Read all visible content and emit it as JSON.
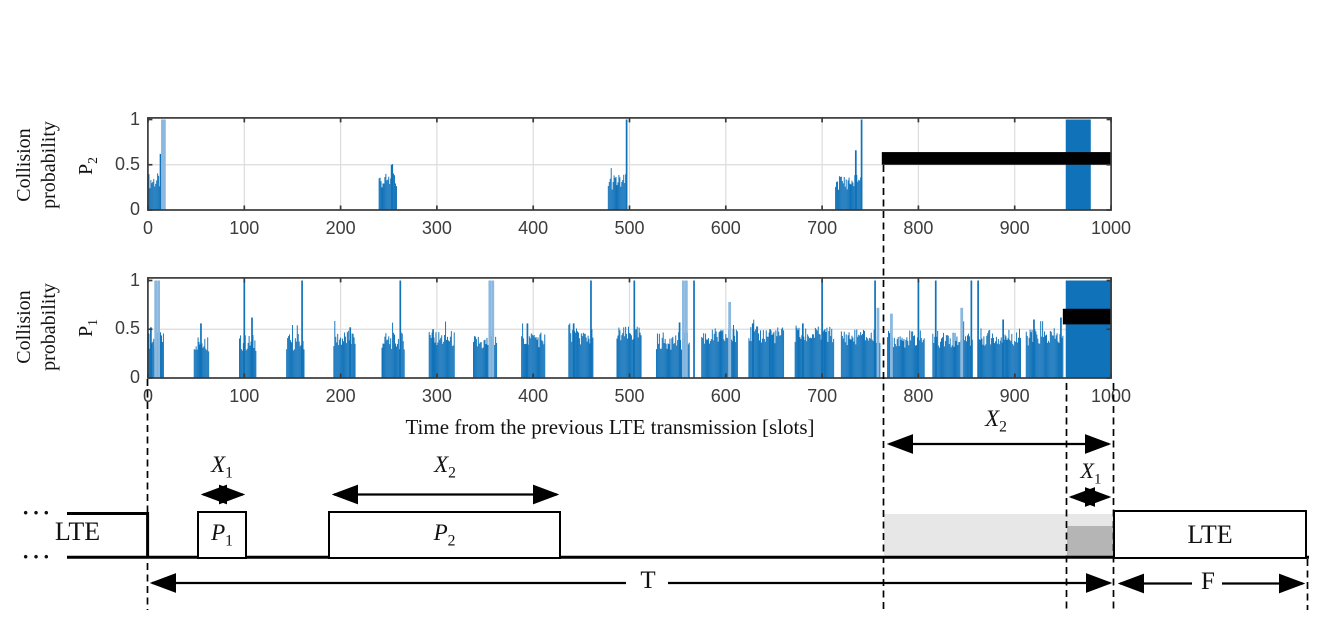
{
  "colors": {
    "bar_dark": "#1072b9",
    "bar_light": "#8ab8df",
    "overlay_bar": "#000000",
    "grid": "#dcdcdc",
    "axis": "#3a3a3a",
    "tick_text": "#3d3d3d",
    "shade_light": "#e7e7e7",
    "shade_dark": "#b5b5b5"
  },
  "chart_data": [
    {
      "type": "bar",
      "name": "collision-probability-p2",
      "ylabel_lines": [
        "Collision",
        "probability"
      ],
      "series_label": {
        "base": "P",
        "sub": "2"
      },
      "xlim": [
        0,
        1000
      ],
      "ylim": [
        0,
        1
      ],
      "grid": true,
      "legend": "none",
      "x_ticks": [
        0,
        100,
        200,
        300,
        400,
        500,
        600,
        700,
        800,
        900,
        1000
      ],
      "x_tick_labels": [
        "0",
        "100",
        "200",
        "300",
        "400",
        "500",
        "600",
        "700",
        "800",
        "900",
        "1000"
      ],
      "y_ticks": [
        0,
        0.5,
        1
      ],
      "y_tick_labels": [
        "0",
        "0.5",
        "1"
      ],
      "clusters": [
        {
          "from": 1,
          "to": 14,
          "base": 0.32,
          "spikes": [
            [
              13,
              0.62,
              "d"
            ],
            [
              15,
              1.0,
              "l"
            ],
            [
              17,
              1.0,
              "l"
            ]
          ]
        },
        {
          "from": 240,
          "to": 258,
          "base": 0.32,
          "spikes": [
            [
              253,
              0.5,
              "d"
            ]
          ]
        },
        {
          "from": 478,
          "to": 496,
          "base": 0.31,
          "spikes": [
            [
              497,
              1.0,
              "d"
            ]
          ]
        },
        {
          "from": 714,
          "to": 741,
          "base": 0.31,
          "spikes": [
            [
              735,
              0.66,
              "d"
            ],
            [
              741,
              1.0,
              "d"
            ]
          ]
        }
      ],
      "solid_blocks": [
        {
          "from": 953,
          "to": 979,
          "height": 1.0
        }
      ],
      "overlay_bar": {
        "x": [
          762,
          1000
        ],
        "y": [
          0.5,
          0.64
        ]
      }
    },
    {
      "type": "bar",
      "name": "collision-probability-p1",
      "ylabel_lines": [
        "Collision",
        "probability"
      ],
      "series_label": {
        "base": "P",
        "sub": "1"
      },
      "xlabel": "Time from the previous LTE transmission [slots]",
      "xlim": [
        0,
        1000
      ],
      "ylim": [
        0,
        1
      ],
      "grid": true,
      "legend": "none",
      "x_ticks": [
        0,
        100,
        200,
        300,
        400,
        500,
        600,
        700,
        800,
        900,
        1000
      ],
      "x_tick_labels": [
        "0",
        "100",
        "200",
        "300",
        "400",
        "500",
        "600",
        "700",
        "800",
        "900",
        "1000"
      ],
      "y_ticks": [
        0,
        0.5,
        1
      ],
      "y_tick_labels": [
        "0",
        "0.5",
        "1"
      ],
      "clusters": [
        {
          "from": 1,
          "to": 16,
          "base": 0.38,
          "spikes": [
            [
              3,
              0.52,
              "d"
            ],
            [
              8,
              1.0,
              "l"
            ],
            [
              11,
              1.0,
              "l"
            ]
          ]
        },
        {
          "from": 48,
          "to": 63,
          "base": 0.36,
          "spikes": [
            [
              55,
              0.56,
              "d"
            ]
          ]
        },
        {
          "from": 95,
          "to": 112,
          "base": 0.36,
          "spikes": [
            [
              100,
              1.0,
              "d"
            ],
            [
              108,
              0.62,
              "d"
            ]
          ]
        },
        {
          "from": 144,
          "to": 162,
          "base": 0.37,
          "spikes": [
            [
              160,
              1.0,
              "d"
            ]
          ]
        },
        {
          "from": 193,
          "to": 215,
          "base": 0.4,
          "spikes": [
            [
              210,
              0.52,
              "d"
            ]
          ]
        },
        {
          "from": 243,
          "to": 266,
          "base": 0.38,
          "spikes": [
            [
              262,
              1.0,
              "d"
            ]
          ]
        },
        {
          "from": 292,
          "to": 318,
          "base": 0.4,
          "spikes": [
            [
              296,
              0.5,
              "d"
            ]
          ]
        },
        {
          "from": 338,
          "to": 362,
          "base": 0.36,
          "spikes": [
            [
              355,
              1.0,
              "l"
            ],
            [
              358,
              1.0,
              "l"
            ]
          ]
        },
        {
          "from": 388,
          "to": 412,
          "base": 0.4,
          "spikes": [
            [
              394,
              0.56,
              "d"
            ]
          ]
        },
        {
          "from": 437,
          "to": 462,
          "base": 0.42,
          "spikes": [
            [
              442,
              0.56,
              "d"
            ],
            [
              460,
              1.0,
              "d"
            ]
          ]
        },
        {
          "from": 487,
          "to": 512,
          "base": 0.44,
          "spikes": [
            [
              505,
              1.0,
              "d"
            ]
          ]
        },
        {
          "from": 528,
          "to": 562,
          "base": 0.38,
          "spikes": [
            [
              552,
              0.57,
              "d"
            ],
            [
              556,
              1.0,
              "l"
            ],
            [
              559,
              1.0,
              "l"
            ]
          ]
        },
        {
          "from": 575,
          "to": 612,
          "base": 0.42,
          "spikes": [
            [
              567,
              1.0,
              "d"
            ],
            [
              604,
              0.78,
              "l"
            ],
            [
              608,
              0.5,
              "d"
            ]
          ]
        },
        {
          "from": 624,
          "to": 660,
          "base": 0.44,
          "spikes": [
            [
              628,
              0.56,
              "d"
            ],
            [
              646,
              0.5,
              "d"
            ]
          ]
        },
        {
          "from": 672,
          "to": 712,
          "base": 0.44,
          "spikes": [
            [
              680,
              0.56,
              "d"
            ],
            [
              700,
              1.0,
              "d"
            ]
          ]
        },
        {
          "from": 720,
          "to": 760,
          "base": 0.42,
          "spikes": [
            [
              755,
              1.0,
              "d"
            ],
            [
              758,
              0.72,
              "l"
            ]
          ]
        },
        {
          "from": 768,
          "to": 806,
          "base": 0.4,
          "spikes": [
            [
              772,
              0.66,
              "l"
            ],
            [
              800,
              1.0,
              "d"
            ]
          ]
        },
        {
          "from": 815,
          "to": 856,
          "base": 0.4,
          "spikes": [
            [
              818,
              1.0,
              "d"
            ],
            [
              845,
              0.72,
              "l"
            ],
            [
              855,
              1.0,
              "d"
            ]
          ]
        },
        {
          "from": 862,
          "to": 906,
          "base": 0.42,
          "spikes": [
            [
              862,
              1.0,
              "d"
            ],
            [
              888,
              0.6,
              "d"
            ]
          ]
        },
        {
          "from": 912,
          "to": 950,
          "base": 0.42,
          "spikes": [
            [
              920,
              0.6,
              "d"
            ],
            [
              948,
              0.62,
              "d"
            ]
          ]
        }
      ],
      "solid_blocks": [
        {
          "from": 953,
          "to": 1000,
          "height": 1.0
        }
      ],
      "overlay_bar": {
        "x": [
          950,
          1000
        ],
        "y": [
          0.55,
          0.71
        ]
      }
    }
  ],
  "timing_diagram": {
    "labels": {
      "lte_left": "LTE",
      "lte_right": "LTE",
      "p1_base": "P",
      "p1_sub": "1",
      "p2_base": "P",
      "p2_sub": "2",
      "x1_base": "X",
      "x1_sub": "1",
      "x2_base": "X",
      "x2_sub": "2",
      "t": "T",
      "f": "F",
      "dots": "···"
    }
  }
}
